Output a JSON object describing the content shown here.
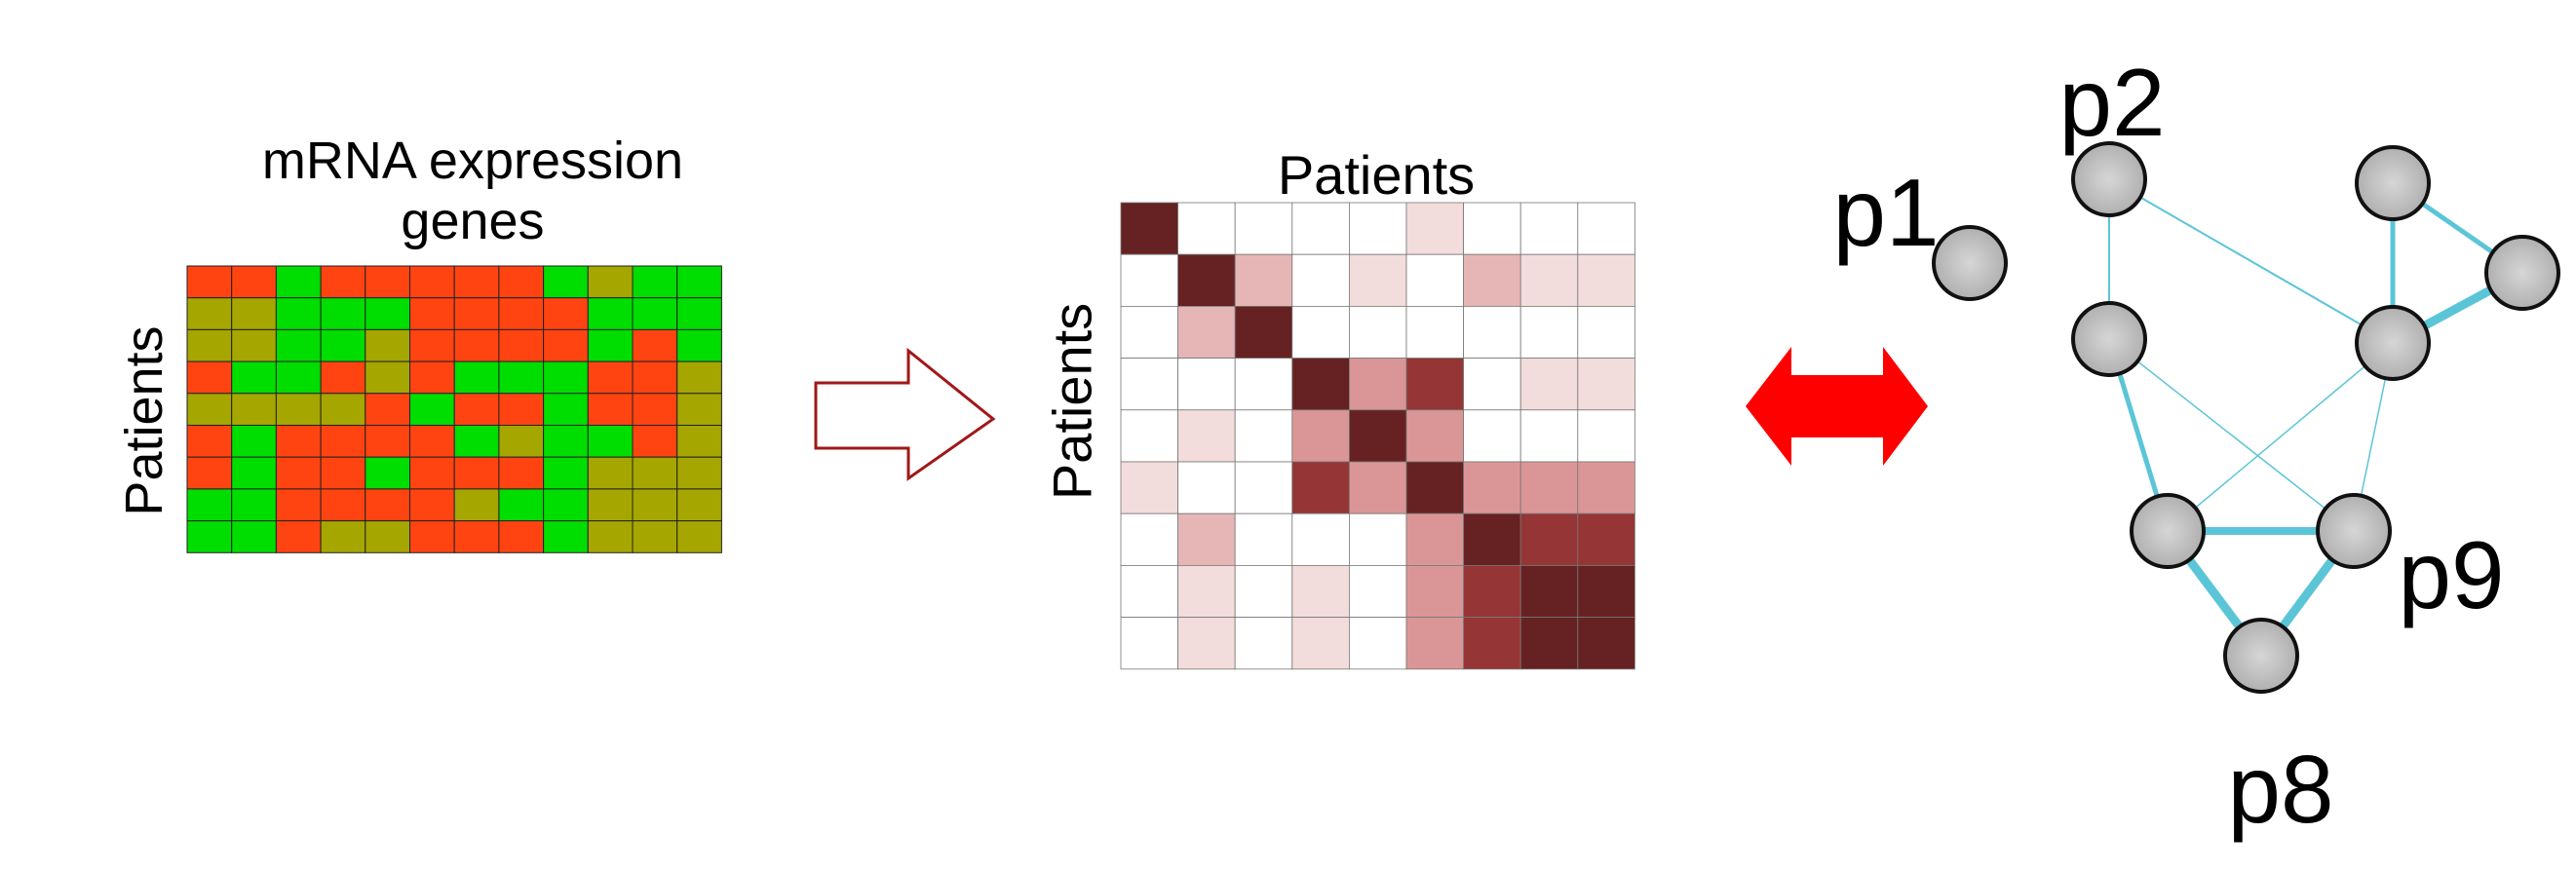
{
  "expression_matrix": {
    "title_line1": "mRNA expression",
    "title_line2": "genes",
    "row_label": "Patients",
    "colors": {
      "R": "#ff4411",
      "G": "#00dd00",
      "O": "#a5a600"
    },
    "cells": [
      "RRGRRRRRGOGG",
      "OOGGGRRRRGGG",
      "OOGGORRRRGRG",
      "RGGRORGGGRRO",
      "OOOORGRRGRRO",
      "RGRRRRGOGGRO",
      "RGRRGRRRGOOO",
      "GGRRRROGGOOO",
      "GGROORRRGOOO"
    ]
  },
  "correlation_matrix": {
    "title": "Patients",
    "row_label": "Patients",
    "palette": [
      "#ffffff",
      "#f3dcdc",
      "#e6b6b6",
      "#da9696",
      "#963535",
      "#662222"
    ],
    "levels": [
      [
        5,
        0,
        0,
        0,
        0,
        1,
        0,
        0,
        0
      ],
      [
        0,
        5,
        2,
        0,
        1,
        0,
        2,
        1,
        1
      ],
      [
        0,
        2,
        5,
        0,
        0,
        0,
        0,
        0,
        0
      ],
      [
        0,
        0,
        0,
        5,
        3,
        4,
        0,
        1,
        1
      ],
      [
        0,
        1,
        0,
        3,
        5,
        3,
        0,
        0,
        0
      ],
      [
        1,
        0,
        0,
        4,
        3,
        5,
        3,
        3,
        3
      ],
      [
        0,
        2,
        0,
        0,
        0,
        3,
        5,
        4,
        4
      ],
      [
        0,
        1,
        0,
        1,
        0,
        3,
        4,
        5,
        5
      ],
      [
        0,
        1,
        0,
        1,
        0,
        3,
        4,
        5,
        5
      ]
    ]
  },
  "arrows": {
    "transform_arrow_color": "#a01818",
    "equivalence_arrow_color": "#ff0000"
  },
  "network": {
    "node_color": "#b0b0b0",
    "edge_color": "#5bc5d8",
    "nodes": [
      {
        "id": "p1",
        "label": "p1"
      },
      {
        "id": "p2",
        "label": "p2"
      },
      {
        "id": "n3",
        "label": ""
      },
      {
        "id": "n4",
        "label": ""
      },
      {
        "id": "n5",
        "label": ""
      },
      {
        "id": "n6",
        "label": ""
      },
      {
        "id": "n7",
        "label": ""
      },
      {
        "id": "p9",
        "label": "p9"
      },
      {
        "id": "p8",
        "label": "p8"
      }
    ],
    "edges": [
      {
        "from": "p2",
        "to": "n3",
        "weight": 2
      },
      {
        "from": "p2",
        "to": "n6",
        "weight": 2
      },
      {
        "from": "n4",
        "to": "n5",
        "weight": 5
      },
      {
        "from": "n4",
        "to": "n6",
        "weight": 5
      },
      {
        "from": "n5",
        "to": "n6",
        "weight": 9
      },
      {
        "from": "n3",
        "to": "n7",
        "weight": 5
      },
      {
        "from": "n3",
        "to": "p9",
        "weight": 1.5
      },
      {
        "from": "n6",
        "to": "n7",
        "weight": 1.5
      },
      {
        "from": "n6",
        "to": "p9",
        "weight": 1.5
      },
      {
        "from": "n7",
        "to": "p9",
        "weight": 8
      },
      {
        "from": "n7",
        "to": "p8",
        "weight": 9
      },
      {
        "from": "p9",
        "to": "p8",
        "weight": 9
      }
    ]
  }
}
